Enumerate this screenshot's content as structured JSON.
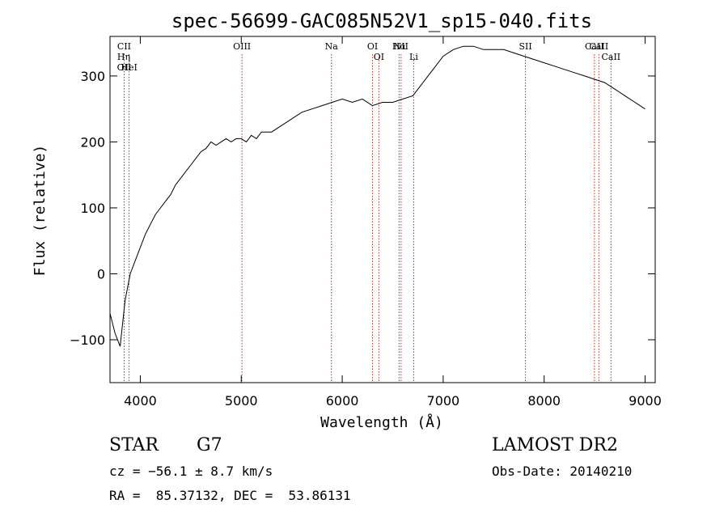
{
  "chart_data": {
    "type": "line",
    "title": "spec-56699-GAC085N52V1_sp15-040.fits",
    "xlabel": "Wavelength (Å)",
    "ylabel": "Flux (relative)",
    "xlim": [
      3700,
      9100
    ],
    "ylim": [
      -165,
      360
    ],
    "xticks": [
      4000,
      5000,
      6000,
      7000,
      8000,
      9000
    ],
    "yticks": [
      -100,
      0,
      100,
      200,
      300
    ],
    "xtick_labels": [
      "4000",
      "5000",
      "6000",
      "7000",
      "8000",
      "9000"
    ],
    "ytick_labels": [
      "−100",
      "0",
      "100",
      "200",
      "300"
    ],
    "series": [
      {
        "name": "spectrum",
        "x": [
          3700,
          3750,
          3800,
          3850,
          3900,
          3950,
          4000,
          4050,
          4100,
          4150,
          4200,
          4250,
          4300,
          4350,
          4400,
          4450,
          4500,
          4550,
          4600,
          4650,
          4700,
          4750,
          4800,
          4850,
          4900,
          4950,
          5000,
          5050,
          5100,
          5150,
          5200,
          5300,
          5400,
          5500,
          5600,
          5700,
          5800,
          5900,
          6000,
          6100,
          6200,
          6300,
          6400,
          6500,
          6600,
          6700,
          6800,
          6900,
          7000,
          7100,
          7200,
          7300,
          7400,
          7500,
          7600,
          7700,
          7800,
          7900,
          8000,
          8100,
          8200,
          8300,
          8400,
          8500,
          8600,
          8700,
          8800,
          8900,
          9000
        ],
        "y": [
          -60,
          -90,
          -110,
          -40,
          0,
          20,
          40,
          60,
          75,
          90,
          100,
          110,
          120,
          135,
          145,
          155,
          165,
          175,
          185,
          190,
          200,
          195,
          200,
          205,
          200,
          205,
          205,
          200,
          210,
          205,
          215,
          215,
          225,
          235,
          245,
          250,
          255,
          260,
          265,
          260,
          265,
          255,
          260,
          260,
          265,
          270,
          290,
          310,
          330,
          340,
          345,
          345,
          340,
          340,
          340,
          335,
          330,
          325,
          320,
          315,
          310,
          305,
          300,
          295,
          290,
          280,
          270,
          260,
          250
        ]
      }
    ],
    "lines": [
      {
        "label": "CII",
        "wl": 3840
      },
      {
        "label": "Hη",
        "wl": 3836
      },
      {
        "label": "OII",
        "wl": 3840
      },
      {
        "label": "HeI",
        "wl": 3889
      },
      {
        "label": "OIII",
        "wl": 5007
      },
      {
        "label": "Na",
        "wl": 5893
      },
      {
        "label": "OI",
        "wl": 6300
      },
      {
        "label": "OI",
        "wl": 6363
      },
      {
        "label": "Hα",
        "wl": 6563
      },
      {
        "label": "NII",
        "wl": 6583
      },
      {
        "label": "Li",
        "wl": 6708
      },
      {
        "label": "SII",
        "wl": 7815
      },
      {
        "label": "CaII",
        "wl": 8498
      },
      {
        "label": "CaII",
        "wl": 8542
      },
      {
        "label": "CaII",
        "wl": 8662
      }
    ]
  },
  "footer": {
    "object_class": "STAR",
    "subclass": "G7",
    "survey": "LAMOST DR2",
    "cz": "cz = −56.1 ± 8.7 km/s",
    "obs_date": "Obs-Date: 20140210",
    "coords": "RA =  85.37132, DEC =  53.86131"
  },
  "colors": {
    "line": "#000000",
    "marker": "#b03030"
  }
}
